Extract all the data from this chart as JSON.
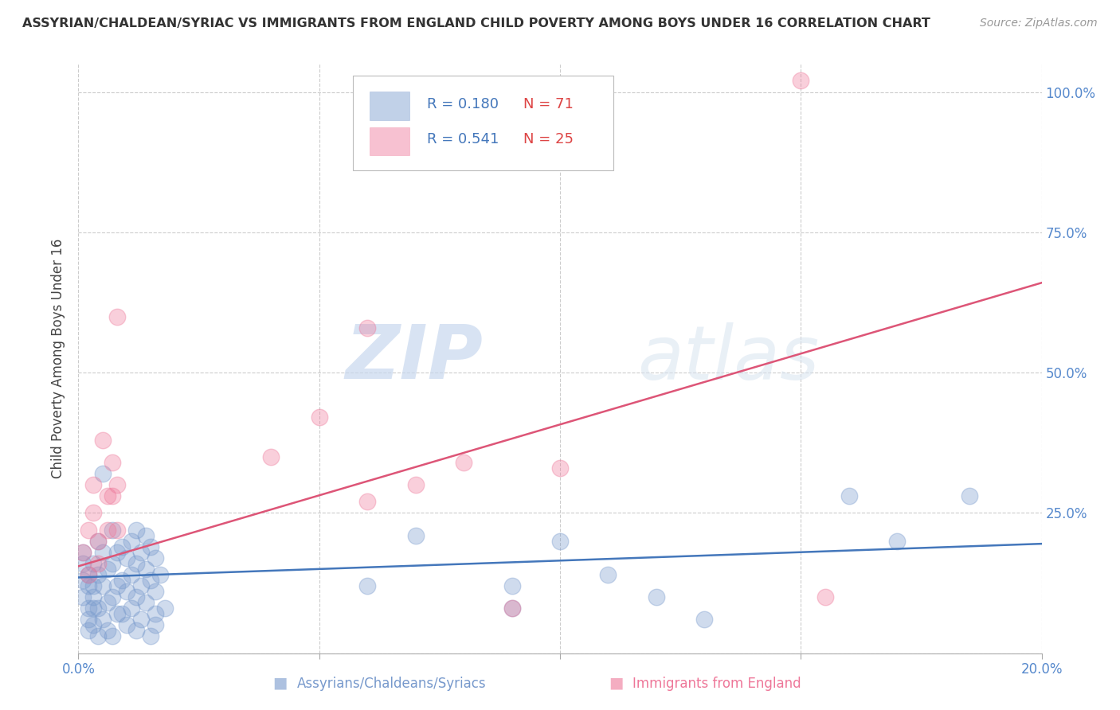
{
  "title": "ASSYRIAN/CHALDEAN/SYRIAC VS IMMIGRANTS FROM ENGLAND CHILD POVERTY AMONG BOYS UNDER 16 CORRELATION CHART",
  "source": "Source: ZipAtlas.com",
  "ylabel": "Child Poverty Among Boys Under 16",
  "xlim": [
    0.0,
    0.2
  ],
  "ylim": [
    0.0,
    1.05
  ],
  "xticks": [
    0.0,
    0.05,
    0.1,
    0.15,
    0.2
  ],
  "xtick_labels": [
    "0.0%",
    "",
    "",
    "",
    "20.0%"
  ],
  "ytick_labels_right": [
    "",
    "25.0%",
    "50.0%",
    "75.0%",
    "100.0%"
  ],
  "yticks_right": [
    0.0,
    0.25,
    0.5,
    0.75,
    1.0
  ],
  "grid_color": "#cccccc",
  "background_color": "#ffffff",
  "blue_color": "#7799cc",
  "pink_color": "#ee7799",
  "blue_line_color": "#4477bb",
  "pink_line_color": "#dd5577",
  "R_blue": 0.18,
  "N_blue": 71,
  "R_pink": 0.541,
  "N_pink": 25,
  "legend_label_blue": "Assyrians/Chaldeans/Syriacs",
  "legend_label_pink": "Immigrants from England",
  "watermark_zip": "ZIP",
  "watermark_atlas": "atlas",
  "blue_scatter": [
    [
      0.001,
      0.13
    ],
    [
      0.001,
      0.16
    ],
    [
      0.001,
      0.1
    ],
    [
      0.001,
      0.18
    ],
    [
      0.002,
      0.14
    ],
    [
      0.002,
      0.08
    ],
    [
      0.002,
      0.12
    ],
    [
      0.002,
      0.06
    ],
    [
      0.002,
      0.04
    ],
    [
      0.003,
      0.16
    ],
    [
      0.003,
      0.1
    ],
    [
      0.003,
      0.05
    ],
    [
      0.003,
      0.08
    ],
    [
      0.003,
      0.12
    ],
    [
      0.004,
      0.2
    ],
    [
      0.004,
      0.14
    ],
    [
      0.004,
      0.08
    ],
    [
      0.004,
      0.03
    ],
    [
      0.005,
      0.18
    ],
    [
      0.005,
      0.12
    ],
    [
      0.005,
      0.06
    ],
    [
      0.005,
      0.32
    ],
    [
      0.006,
      0.15
    ],
    [
      0.006,
      0.09
    ],
    [
      0.006,
      0.04
    ],
    [
      0.007,
      0.22
    ],
    [
      0.007,
      0.16
    ],
    [
      0.007,
      0.1
    ],
    [
      0.007,
      0.03
    ],
    [
      0.008,
      0.18
    ],
    [
      0.008,
      0.12
    ],
    [
      0.008,
      0.07
    ],
    [
      0.009,
      0.19
    ],
    [
      0.009,
      0.13
    ],
    [
      0.009,
      0.07
    ],
    [
      0.01,
      0.17
    ],
    [
      0.01,
      0.11
    ],
    [
      0.01,
      0.05
    ],
    [
      0.011,
      0.2
    ],
    [
      0.011,
      0.14
    ],
    [
      0.011,
      0.08
    ],
    [
      0.012,
      0.22
    ],
    [
      0.012,
      0.16
    ],
    [
      0.012,
      0.1
    ],
    [
      0.012,
      0.04
    ],
    [
      0.013,
      0.18
    ],
    [
      0.013,
      0.12
    ],
    [
      0.013,
      0.06
    ],
    [
      0.014,
      0.21
    ],
    [
      0.014,
      0.15
    ],
    [
      0.014,
      0.09
    ],
    [
      0.015,
      0.03
    ],
    [
      0.015,
      0.19
    ],
    [
      0.015,
      0.13
    ],
    [
      0.016,
      0.07
    ],
    [
      0.016,
      0.17
    ],
    [
      0.016,
      0.11
    ],
    [
      0.016,
      0.05
    ],
    [
      0.017,
      0.14
    ],
    [
      0.018,
      0.08
    ],
    [
      0.06,
      0.12
    ],
    [
      0.07,
      0.21
    ],
    [
      0.09,
      0.12
    ],
    [
      0.09,
      0.08
    ],
    [
      0.1,
      0.2
    ],
    [
      0.11,
      0.14
    ],
    [
      0.12,
      0.1
    ],
    [
      0.13,
      0.06
    ],
    [
      0.16,
      0.28
    ],
    [
      0.17,
      0.2
    ],
    [
      0.185,
      0.28
    ]
  ],
  "pink_scatter": [
    [
      0.001,
      0.18
    ],
    [
      0.002,
      0.22
    ],
    [
      0.002,
      0.14
    ],
    [
      0.003,
      0.25
    ],
    [
      0.003,
      0.3
    ],
    [
      0.004,
      0.2
    ],
    [
      0.004,
      0.16
    ],
    [
      0.005,
      0.38
    ],
    [
      0.006,
      0.28
    ],
    [
      0.006,
      0.22
    ],
    [
      0.007,
      0.34
    ],
    [
      0.007,
      0.28
    ],
    [
      0.008,
      0.22
    ],
    [
      0.008,
      0.3
    ],
    [
      0.008,
      0.6
    ],
    [
      0.04,
      0.35
    ],
    [
      0.05,
      0.42
    ],
    [
      0.06,
      0.58
    ],
    [
      0.06,
      0.27
    ],
    [
      0.07,
      0.3
    ],
    [
      0.08,
      0.34
    ],
    [
      0.09,
      0.08
    ],
    [
      0.1,
      0.33
    ],
    [
      0.15,
      1.02
    ],
    [
      0.155,
      0.1
    ]
  ],
  "blue_trend_x": [
    0.0,
    0.2
  ],
  "blue_trend_y": [
    0.135,
    0.195
  ],
  "pink_trend_x": [
    0.0,
    0.2
  ],
  "pink_trend_y": [
    0.155,
    0.66
  ]
}
